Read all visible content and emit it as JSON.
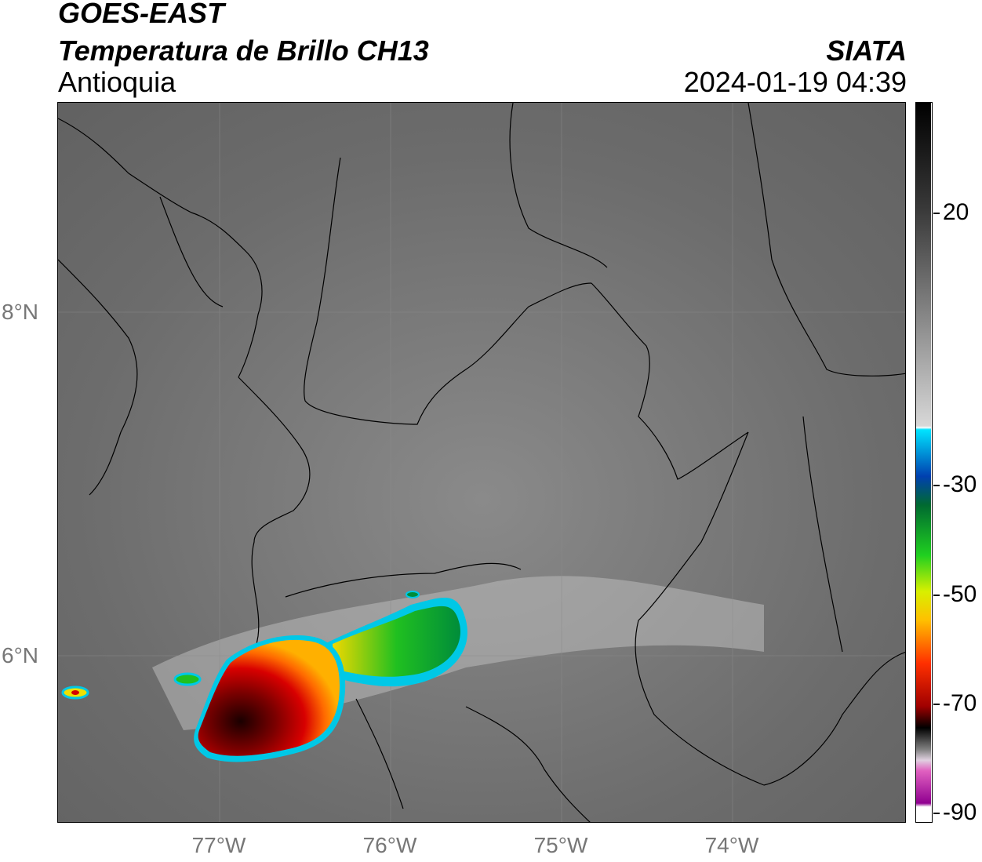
{
  "header": {
    "title": "GOES-EAST",
    "subtitle": "Temperatura de Brillo CH13",
    "region": "Antioquia",
    "brand": "SIATA",
    "datetime": "2024-01-19 04:39"
  },
  "map": {
    "lat_labels": [
      "8°N",
      "6°N"
    ],
    "lon_labels": [
      "77°W",
      "76°W",
      "75°W",
      "74°W"
    ]
  },
  "colorbar": {
    "labels": [
      "20",
      "-30",
      "-50",
      "-70",
      "-90"
    ]
  },
  "colors": {
    "background_gray": "#6a6a6a",
    "cold_cloud_red": "#d40000",
    "cold_cloud_dark": "#2a0000",
    "cyan": "#00c8e6",
    "green": "#00c000",
    "yellow": "#f0e000"
  }
}
